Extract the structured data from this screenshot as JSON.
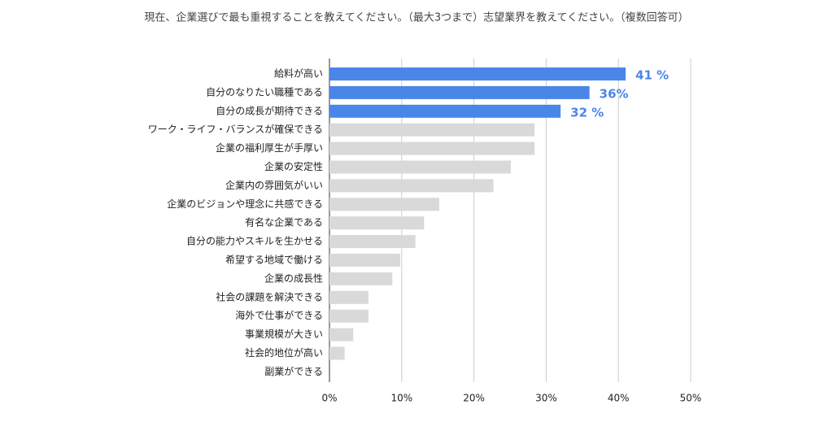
{
  "chart_data": {
    "type": "hbar",
    "title": "現在、企業選びで最も重視することを教えてください。（最大3つまで）志望業界を教えてください。（複数回答可）",
    "categories": [
      "給料が高い",
      "自分のなりたい職種である",
      "自分の成長が期待できる",
      "ワーク・ライフ・バランスが確保できる",
      "企業の福利厚生が手厚い",
      "企業の安定性",
      "企業内の雰囲気がいい",
      "企業のビジョンや理念に共感できる",
      "有名な企業である",
      "自分の能力やスキルを生かせる",
      "希望する地域で働ける",
      "企業の成長性",
      "社会の課題を解決できる",
      "海外で仕事ができる",
      "事業規模が大きい",
      "社会的地位が高い",
      "副業ができる"
    ],
    "values": [
      41,
      36,
      32,
      28.4,
      28.4,
      25.1,
      22.7,
      15.2,
      13.1,
      11.9,
      9.8,
      8.7,
      5.4,
      5.4,
      3.3,
      2.1,
      0
    ],
    "value_labels": [
      "41 %",
      "36%",
      "32 %",
      null,
      null,
      null,
      null,
      null,
      null,
      null,
      null,
      null,
      null,
      null,
      null,
      null,
      null
    ],
    "colors": [
      "#4a86e8",
      "#4a86e8",
      "#4a86e8",
      "#d9d9d9",
      "#d9d9d9",
      "#d9d9d9",
      "#d9d9d9",
      "#d9d9d9",
      "#d9d9d9",
      "#d9d9d9",
      "#d9d9d9",
      "#d9d9d9",
      "#d9d9d9",
      "#d9d9d9",
      "#d9d9d9",
      "#d9d9d9",
      "#d9d9d9"
    ],
    "label_color": "#4a86e8",
    "xlim": [
      0,
      50
    ],
    "xticks": [
      {
        "value": 0,
        "label": "0%"
      },
      {
        "value": 10,
        "label": "10%"
      },
      {
        "value": 20,
        "label": "20%"
      },
      {
        "value": 30,
        "label": "30%"
      },
      {
        "value": 40,
        "label": "40%"
      },
      {
        "value": 50,
        "label": "50%"
      }
    ],
    "grid": true
  }
}
